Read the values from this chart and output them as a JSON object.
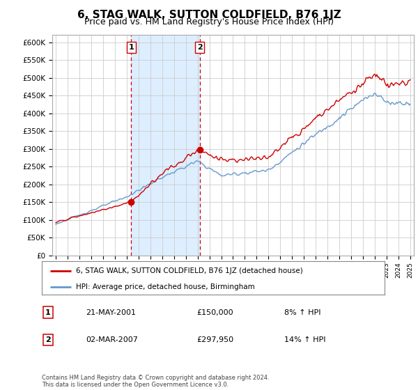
{
  "title": "6, STAG WALK, SUTTON COLDFIELD, B76 1JZ",
  "subtitle": "Price paid vs. HM Land Registry's House Price Index (HPI)",
  "title_fontsize": 11,
  "subtitle_fontsize": 9,
  "background_color": "#ffffff",
  "grid_color": "#cccccc",
  "shaded_color": "#ddeeff",
  "transaction1": {
    "x": 2001.38,
    "price": 150000,
    "label": "1"
  },
  "transaction2": {
    "x": 2007.17,
    "price": 297950,
    "label": "2"
  },
  "dash_color": "#cc0000",
  "hpi_color": "#6699cc",
  "price_color": "#cc0000",
  "ylim": [
    0,
    620000
  ],
  "ytick_step": 50000,
  "xlim": [
    1994.7,
    2025.3
  ],
  "legend_entries": [
    "6, STAG WALK, SUTTON COLDFIELD, B76 1JZ (detached house)",
    "HPI: Average price, detached house, Birmingham"
  ],
  "legend_colors": [
    "#cc0000",
    "#6699cc"
  ],
  "table_rows": [
    {
      "num": "1",
      "date": "21-MAY-2001",
      "price": "£150,000",
      "hpi": "8% ↑ HPI"
    },
    {
      "num": "2",
      "date": "02-MAR-2007",
      "price": "£297,950",
      "hpi": "14% ↑ HPI"
    }
  ],
  "footer": "Contains HM Land Registry data © Crown copyright and database right 2024.\nThis data is licensed under the Open Government Licence v3.0."
}
